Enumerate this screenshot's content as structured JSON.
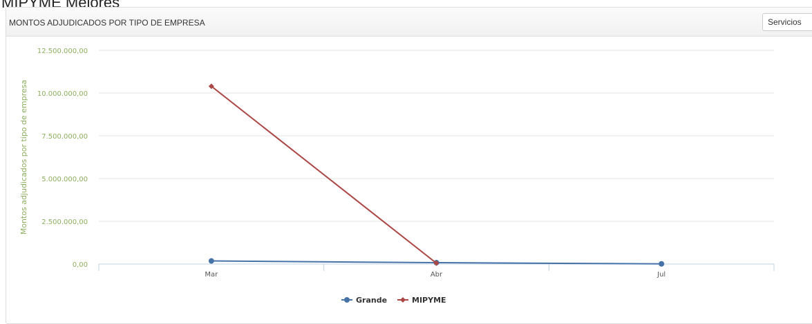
{
  "page_heading": "MIPYME Mejores",
  "panel": {
    "title": "MONTOS ADJUDICADOS POR TIPO DE EMPRESA",
    "dropdown_label": "Servicios"
  },
  "chart_data": {
    "type": "line",
    "title": "MONTOS ADJUDICADOS POR TIPO DE EMPRESA",
    "xlabel": "",
    "ylabel": "Montos adjudicados por tipo de empresa",
    "categories": [
      "Mar",
      "Abr",
      "Jul"
    ],
    "ylim": [
      0,
      12500000
    ],
    "yticks": [
      {
        "value": 0,
        "label": "0,00"
      },
      {
        "value": 2500000,
        "label": "2.500.000,00"
      },
      {
        "value": 5000000,
        "label": "5.000.000,00"
      },
      {
        "value": 7500000,
        "label": "7.500.000,00"
      },
      {
        "value": 10000000,
        "label": "10.000.000,00"
      },
      {
        "value": 12500000,
        "label": "12.500.000,00"
      }
    ],
    "grid": true,
    "legend_position": "bottom-center",
    "series": [
      {
        "name": "Grande",
        "color": "#4572a7",
        "marker": "circle",
        "values": [
          180000,
          80000,
          10000
        ]
      },
      {
        "name": "MIPYME",
        "color": "#aa4643",
        "marker": "diamond",
        "values": [
          10400000,
          50000,
          null
        ]
      }
    ]
  }
}
